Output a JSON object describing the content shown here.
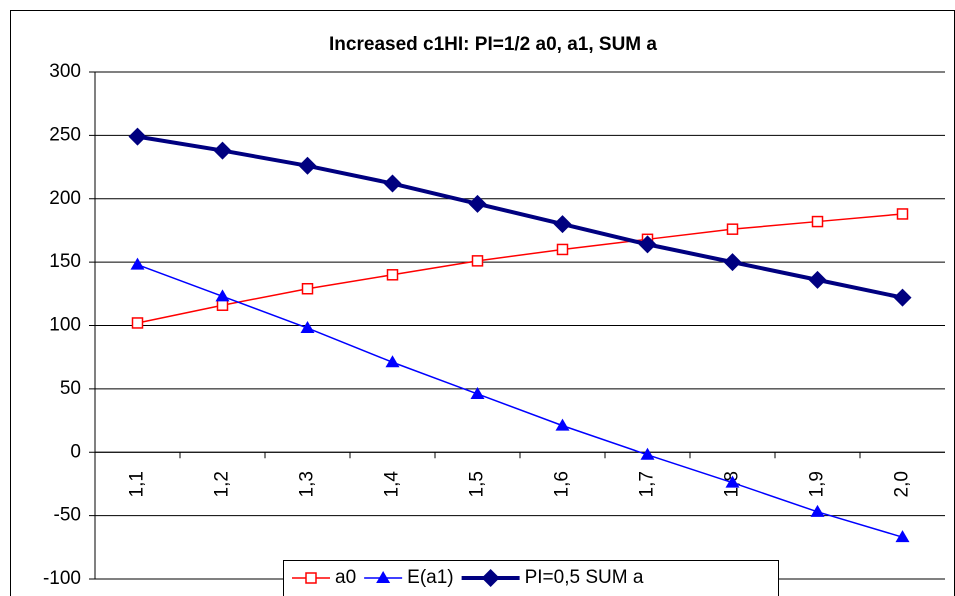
{
  "chart_data": {
    "type": "line",
    "title": "Increased c1HI: PI=1/2 a0, a1, SUM a",
    "categories": [
      "1,1",
      "1,2",
      "1,3",
      "1,4",
      "1,5",
      "1,6",
      "1,7",
      "1,8",
      "1,9",
      "2,0"
    ],
    "series": [
      {
        "name": "a0",
        "color": "#ff0000",
        "marker": "square",
        "line_width": 1.5,
        "values": [
          102,
          116,
          129,
          140,
          151,
          160,
          168,
          176,
          182,
          188
        ]
      },
      {
        "name": "E(a1)",
        "color": "#0000ff",
        "marker": "triangle",
        "line_width": 1.5,
        "values": [
          148,
          123,
          98,
          71,
          46,
          21,
          -2,
          -24,
          -47,
          -67
        ]
      },
      {
        "name": "PI=0,5 SUM a",
        "color": "#000080",
        "marker": "diamond",
        "line_width": 4,
        "values": [
          249,
          238,
          226,
          212,
          196,
          180,
          164,
          150,
          136,
          122
        ]
      }
    ],
    "ylim": [
      -100,
      300
    ],
    "yticks": [
      -100,
      -50,
      0,
      50,
      100,
      150,
      200,
      250,
      300
    ],
    "grid": true,
    "legend": "bottom"
  }
}
